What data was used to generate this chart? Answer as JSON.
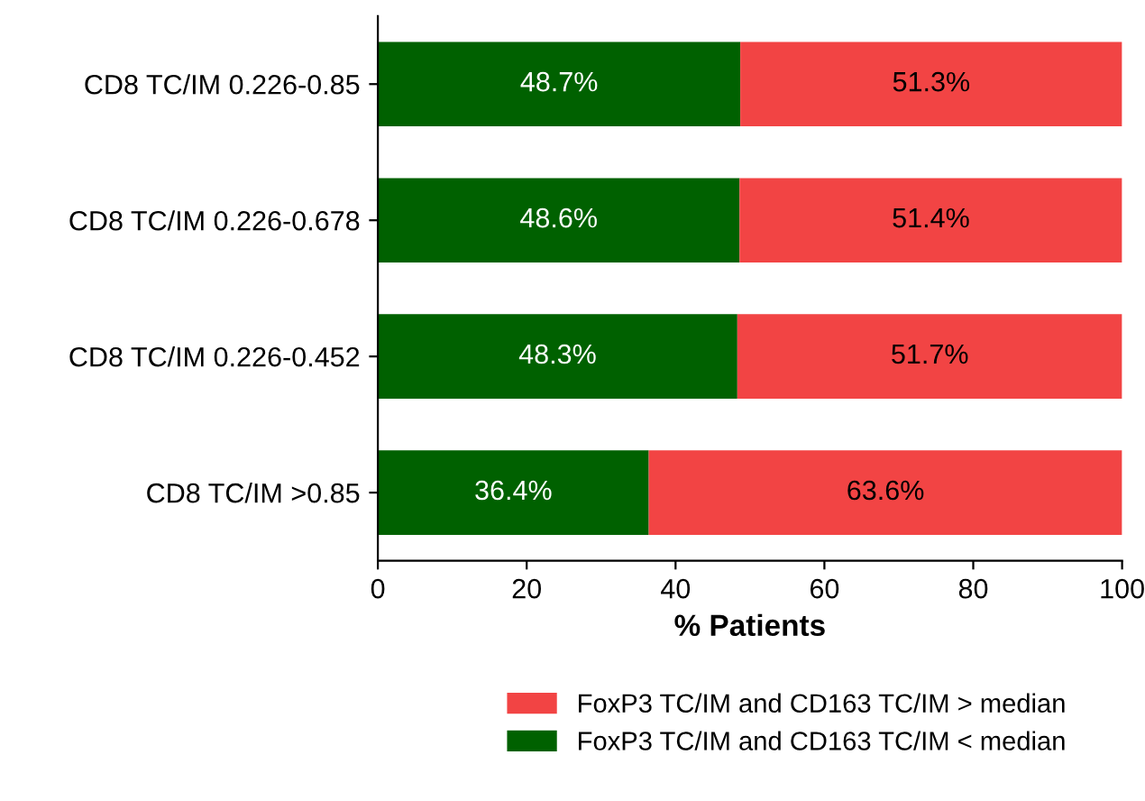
{
  "chart_data": {
    "type": "bar",
    "orientation": "horizontal",
    "stacked": true,
    "xlabel": "% Patients",
    "categories": [
      "CD8 TC/IM 0.226-0.85",
      "CD8 TC/IM 0.226-0.678",
      "CD8 TC/IM 0.226-0.452",
      "CD8 TC/IM >0.85"
    ],
    "series": [
      {
        "name": "FoxP3 TC/IM and CD163 TC/IM < median",
        "color": "#006100",
        "values": [
          48.7,
          48.6,
          48.3,
          36.4
        ],
        "value_labels": [
          "48.7%",
          "48.6%",
          "48.3%",
          "36.4%"
        ]
      },
      {
        "name": "FoxP3 TC/IM and CD163 TC/IM > median",
        "color": "#f24444",
        "values": [
          51.3,
          51.4,
          51.7,
          63.6
        ],
        "value_labels": [
          "51.3%",
          "51.4%",
          "51.7%",
          "63.6%"
        ]
      }
    ],
    "xlim": [
      0,
      100
    ],
    "xticks": [
      0,
      20,
      40,
      60,
      80,
      100
    ],
    "grid": false,
    "legend": "bottom"
  }
}
